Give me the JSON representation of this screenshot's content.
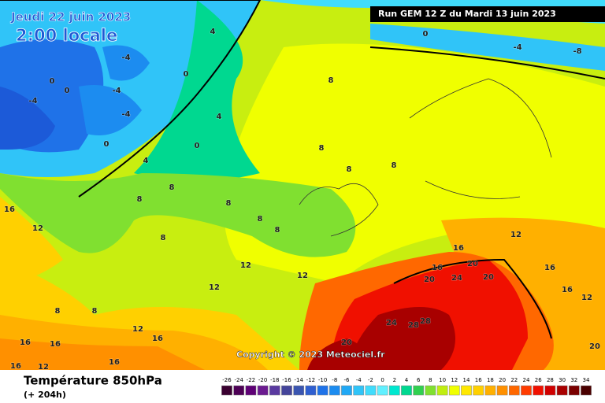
{
  "header": {
    "date": "Jeudi 22 juin 2023",
    "time": "2:00 locale",
    "run": "Run GEM 12 Z du Mardi 13 juin 2023",
    "copyright": "Copyright © 2023 Meteociel.fr"
  },
  "footer": {
    "title": "Température 850hPa",
    "lead": "(+ 204h)"
  },
  "legend": {
    "ticks": [
      -26,
      -24,
      -22,
      -20,
      -18,
      -16,
      -14,
      -12,
      -10,
      -8,
      -6,
      -4,
      -2,
      0,
      2,
      4,
      6,
      8,
      10,
      12,
      14,
      16,
      18,
      20,
      22,
      24,
      26,
      28,
      30,
      32,
      34
    ],
    "colors": [
      "#3a0030",
      "#4d0055",
      "#5e0075",
      "#6b1a8f",
      "#5a3aa0",
      "#44449a",
      "#3a55b0",
      "#2f5fd0",
      "#1f72e8",
      "#1c8cf0",
      "#20a8f5",
      "#30c4f8",
      "#40dcfc",
      "#60f0ff",
      "#00e8d0",
      "#00d890",
      "#30d050",
      "#80e030",
      "#c0ee10",
      "#f0ff00",
      "#ffe800",
      "#ffd000",
      "#ffb000",
      "#ff9000",
      "#ff6800",
      "#ff3c00",
      "#f01000",
      "#d00000",
      "#a80000",
      "#7a0000",
      "#4a0000"
    ]
  },
  "contour_labels": [
    "-4",
    "-4",
    "0",
    "0",
    "-4",
    "-4",
    "0",
    "0",
    "0",
    "4",
    "4",
    "4",
    "0",
    "-4",
    "-8",
    "8",
    "8",
    "8",
    "8",
    "8",
    "8",
    "8",
    "8",
    "8",
    "8",
    "16",
    "12",
    "12",
    "12",
    "12",
    "12",
    "16",
    "16",
    "20",
    "20",
    "24",
    "20",
    "24",
    "28",
    "28",
    "20",
    "16",
    "16",
    "16",
    "12",
    "8",
    "8",
    "16",
    "16",
    "12",
    "20",
    "16",
    "16",
    "12"
  ]
}
